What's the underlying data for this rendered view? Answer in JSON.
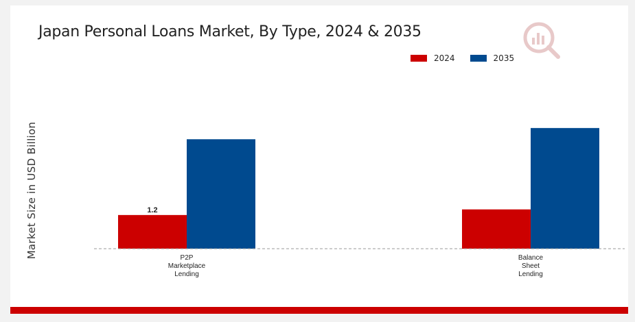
{
  "chart_data": {
    "type": "bar",
    "title": "Japan Personal Loans Market, By Type, 2024 & 2035",
    "ylabel": "Market Size in USD Billion",
    "xlabel": "",
    "categories": [
      [
        "P2P",
        "Marketplace",
        "Lending"
      ],
      [
        "Balance",
        "Sheet",
        "Lending"
      ]
    ],
    "series": [
      {
        "name": "2024",
        "color": "#cc0000",
        "values": [
          1.2,
          1.4
        ]
      },
      {
        "name": "2035",
        "color": "#004a8f",
        "values": [
          3.9,
          4.3
        ]
      }
    ],
    "data_labels": [
      {
        "series": 0,
        "category": 0,
        "text": "1.2"
      }
    ],
    "ylim": [
      0,
      5.2
    ],
    "grid": false,
    "legend_position": "top-right"
  },
  "branding": {
    "logo_icon": "magnifier-chart-icon",
    "accent_color": "#cc0000"
  }
}
